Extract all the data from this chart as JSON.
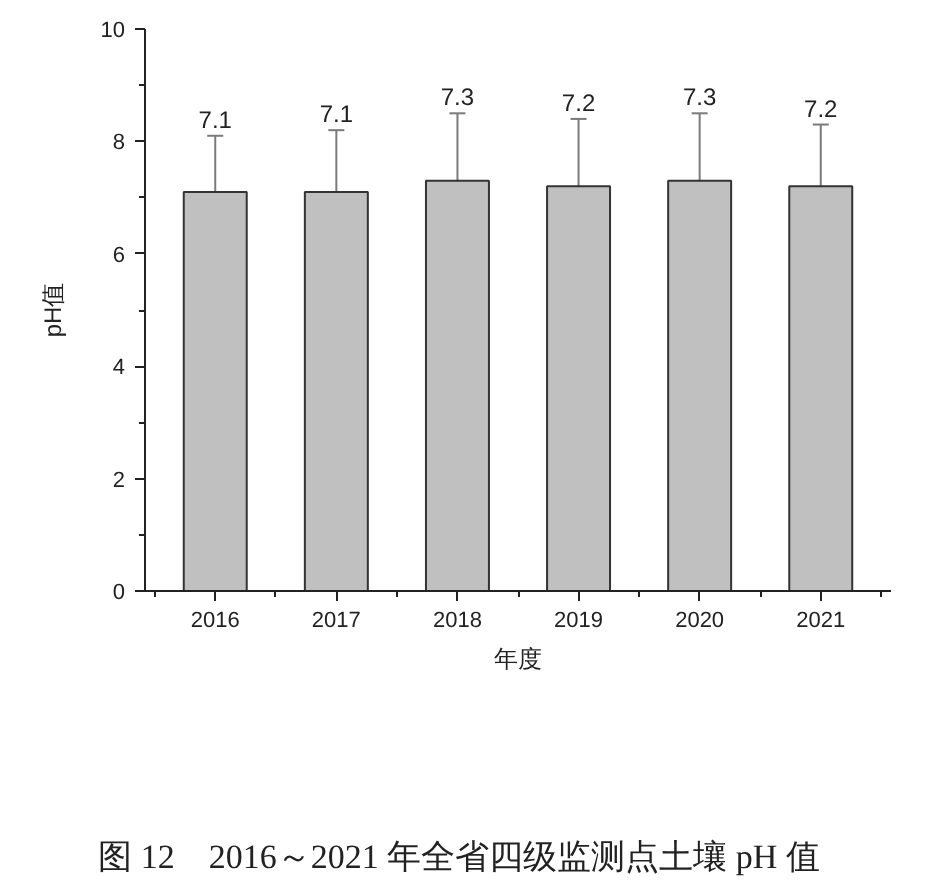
{
  "chart_data": {
    "type": "bar",
    "categories": [
      "2016",
      "2017",
      "2018",
      "2019",
      "2020",
      "2021"
    ],
    "values": [
      7.1,
      7.1,
      7.3,
      7.2,
      7.3,
      7.2
    ],
    "errors": [
      1.0,
      1.1,
      1.2,
      1.2,
      1.2,
      1.1
    ],
    "color": "#c0c0c0",
    "data_labels": true,
    "xlabel": "年度",
    "ylabel": "pH值",
    "ylim": [
      0,
      10
    ],
    "yticks": [
      0,
      {
        "value": 1,
        "label": null
      },
      2,
      {
        "value": 3,
        "label": null
      },
      4,
      {
        "value": 5,
        "label": null
      },
      6,
      {
        "value": 7,
        "label": null
      },
      8,
      {
        "value": 9,
        "label": null
      },
      10
    ],
    "grid": false,
    "annotations": [
      "图 12　2016～2021 年全省四级监测点土壤 pH 值"
    ]
  }
}
